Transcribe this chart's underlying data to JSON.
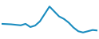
{
  "x": [
    0,
    1,
    2,
    3,
    4,
    5,
    6,
    7,
    8,
    9,
    10,
    11,
    12,
    13,
    14,
    15,
    16,
    17,
    18,
    19,
    20
  ],
  "y": [
    14.5,
    14.4,
    14.3,
    14.1,
    13.9,
    14.5,
    13.2,
    13.8,
    15.5,
    18.5,
    21.5,
    19.5,
    17.5,
    16.5,
    15.0,
    13.0,
    11.5,
    11.0,
    11.5,
    12.0,
    11.8
  ],
  "line_color": "#1a8cbf",
  "background_color": "#ffffff",
  "linewidth": 1.5,
  "ylim_min": 9.0,
  "ylim_max": 23.5
}
